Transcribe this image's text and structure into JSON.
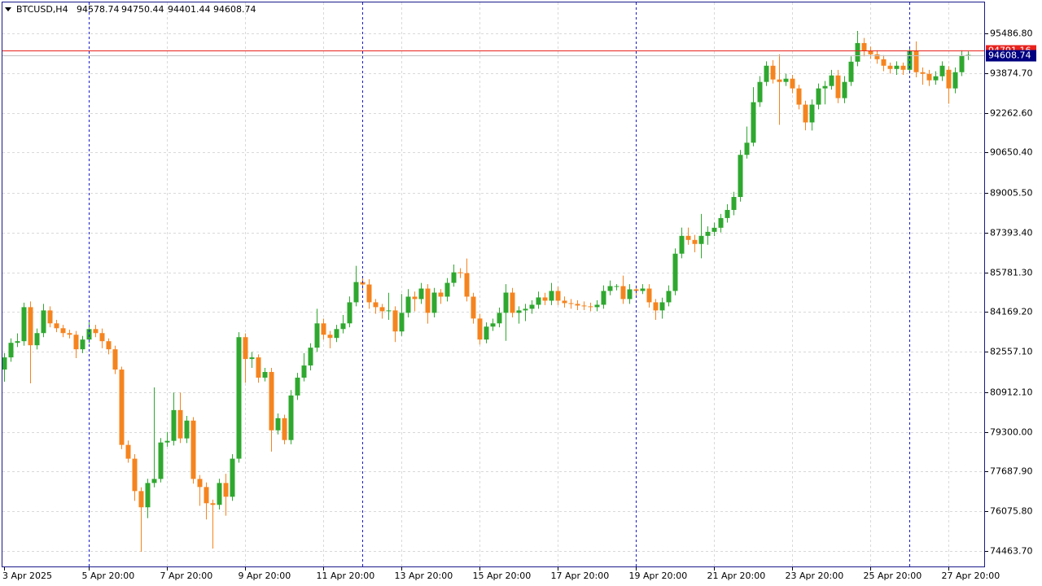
{
  "chart_data": {
    "type": "candlestick",
    "symbol": "BTCUSD,H4",
    "categories": [
      "3 Apr 2025",
      null,
      null,
      null,
      null,
      null,
      null,
      null,
      null,
      null,
      null,
      null,
      null,
      "5 Apr 20:00",
      null,
      null,
      null,
      null,
      null,
      null,
      null,
      null,
      null,
      null,
      null,
      "7 Apr 20:00",
      null,
      null,
      null,
      null,
      null,
      null,
      null,
      null,
      null,
      null,
      null,
      "9 Apr 20:00",
      null,
      null,
      null,
      null,
      null,
      null,
      null,
      null,
      null,
      null,
      null,
      "11 Apr 20:00",
      null,
      null,
      null,
      null,
      null,
      null,
      null,
      null,
      null,
      null,
      null,
      "13 Apr 20:00",
      null,
      null,
      null,
      null,
      null,
      null,
      null,
      null,
      null,
      null,
      null,
      "15 Apr 20:00",
      null,
      null,
      null,
      null,
      null,
      null,
      null,
      null,
      null,
      null,
      null,
      "17 Apr 20:00",
      null,
      null,
      null,
      null,
      null,
      null,
      null,
      null,
      null,
      null,
      null,
      "19 Apr 20:00",
      null,
      null,
      null,
      null,
      null,
      null,
      null,
      null,
      null,
      null,
      null,
      "21 Apr 20:00",
      null,
      null,
      null,
      null,
      null,
      null,
      null,
      null,
      null,
      null,
      null,
      "23 Apr 20:00",
      null,
      null,
      null,
      null,
      null,
      null,
      null,
      null,
      null,
      null,
      null,
      "25 Apr 20:00",
      null,
      null,
      null,
      null,
      null,
      null,
      null,
      null,
      null,
      null,
      null,
      "27 Apr 20:00",
      null,
      null,
      null
    ],
    "open": [
      81833,
      82327,
      82919,
      82985,
      84367,
      82820,
      83314,
      84235,
      83709,
      83511,
      83314,
      83248,
      82656,
      83051,
      83478,
      83314,
      82985,
      82656,
      81833,
      78774,
      78214,
      76898,
      76240,
      77227,
      77392,
      78872,
      78938,
      80188,
      79037,
      79761,
      77392,
      77063,
      76405,
      76339,
      77227,
      76668,
      78214,
      83149,
      82261,
      82327,
      81504,
      81735,
      79366,
      79859,
      78971,
      80781,
      81504,
      81998,
      82722,
      83709,
      83248,
      83117,
      83478,
      83709,
      84564,
      85387,
      85288,
      84564,
      84367,
      84202,
      84235,
      83380,
      84136,
      84794,
      84696,
      85123,
      84136,
      84959,
      84794,
      85354,
      85781,
      85749,
      84794,
      83906,
      83051,
      83577,
      83709,
      84136,
      84959,
      84136,
      84235,
      84301,
      84465,
      84762,
      84630,
      85025,
      84630,
      84531,
      84498,
      84433,
      84400,
      84367,
      84465,
      85025,
      85222,
      85222,
      84696,
      85091,
      85025,
      85123,
      84564,
      84235,
      84564,
      85025,
      86538,
      87262,
      87097,
      86933,
      87262,
      87426,
      87591,
      87986,
      88315,
      88841,
      90552,
      91045,
      92690,
      93513,
      94171,
      93612,
      93513,
      93645,
      93250,
      92592,
      91868,
      92592,
      93250,
      93348,
      93776,
      92855,
      93513,
      94335,
      95092,
      94763,
      94632,
      94434,
      94171,
      94039,
      94171,
      94006,
      94763,
      93908,
      93842,
      93579,
      93743,
      94006,
      93250,
      93908,
      94578.74
    ],
    "high": [
      82500,
      83100,
      83300,
      84550,
      84600,
      83500,
      84500,
      84400,
      83850,
      83650,
      83450,
      83400,
      83200,
      83750,
      83650,
      83500,
      83100,
      82800,
      81950,
      78950,
      78400,
      77050,
      77400,
      81110,
      79050,
      79300,
      80900,
      80900,
      79950,
      79900,
      77550,
      77250,
      76550,
      77400,
      77600,
      78400,
      83350,
      83300,
      82550,
      82450,
      81900,
      81900,
      80050,
      80000,
      81000,
      81700,
      82500,
      82900,
      84300,
      83900,
      83400,
      83650,
      84050,
      84800,
      86045,
      85550,
      85500,
      84700,
      84500,
      84950,
      84400,
      84900,
      85100,
      85000,
      85350,
      85300,
      85150,
      85100,
      85550,
      86100,
      85950,
      86341,
      84950,
      84100,
      83750,
      83900,
      84350,
      85300,
      85150,
      84400,
      84500,
      84650,
      85000,
      84950,
      85350,
      85200,
      84800,
      84700,
      84650,
      84600,
      84550,
      84650,
      85250,
      85450,
      85300,
      85650,
      85300,
      85250,
      85300,
      85300,
      84700,
      84750,
      85250,
      86750,
      87600,
      87600,
      87300,
      88150,
      87650,
      87800,
      88150,
      88550,
      89050,
      90750,
      91700,
      93300,
      93750,
      94350,
      94400,
      94632,
      93850,
      93800,
      93400,
      92750,
      92800,
      93450,
      93550,
      94000,
      94000,
      93750,
      94550,
      95586,
      95300,
      94950,
      94800,
      94600,
      94300,
      94350,
      94300,
      94950,
      95158,
      94100,
      94000,
      93950,
      94350,
      94150,
      94100,
      94800,
      94750.44
    ],
    "low": [
      81340,
      82150,
      82750,
      82800,
      81274,
      82650,
      83150,
      83550,
      83350,
      83150,
      83100,
      82300,
      82500,
      82900,
      83150,
      82700,
      82450,
      81650,
      78600,
      78050,
      76500,
      74431,
      75800,
      77050,
      77250,
      78700,
      78750,
      78850,
      78850,
      77200,
      76300,
      75747,
      74563,
      76150,
      75900,
      76500,
      78050,
      81300,
      81900,
      81300,
      81350,
      78500,
      79200,
      78800,
      78800,
      80600,
      81350,
      81800,
      82550,
      83050,
      82700,
      82950,
      83300,
      83550,
      84400,
      84950,
      84300,
      84100,
      83900,
      83850,
      82950,
      83200,
      83950,
      84200,
      84500,
      83700,
      83950,
      84500,
      84600,
      85200,
      85550,
      84600,
      83700,
      82850,
      82900,
      83400,
      83550,
      83000,
      83950,
      83700,
      83800,
      84100,
      84300,
      84450,
      84450,
      84450,
      84350,
      84300,
      84250,
      84250,
      84200,
      84200,
      84300,
      84850,
      85050,
      84500,
      84500,
      84850,
      84900,
      84350,
      83850,
      83900,
      84400,
      84850,
      86350,
      86900,
      86600,
      86350,
      86900,
      87250,
      87400,
      87800,
      88100,
      88650,
      90400,
      90900,
      92500,
      93350,
      93450,
      91769,
      93350,
      93050,
      92400,
      91550,
      91539,
      92400,
      92600,
      93200,
      92650,
      92650,
      93350,
      94150,
      94550,
      94450,
      94250,
      93950,
      93850,
      93800,
      93800,
      93850,
      93700,
      93400,
      93350,
      93400,
      93550,
      92625,
      93050,
      93750,
      94401.44
    ],
    "close": [
      82327,
      82919,
      82985,
      84367,
      82820,
      83314,
      84235,
      83709,
      83511,
      83314,
      83248,
      82656,
      83051,
      83478,
      83314,
      82985,
      82656,
      81833,
      78774,
      78214,
      76898,
      76240,
      77227,
      77392,
      78872,
      78938,
      80188,
      79037,
      79761,
      77392,
      77063,
      76405,
      76339,
      77227,
      76668,
      78214,
      83149,
      82261,
      82327,
      81504,
      81735,
      79366,
      79859,
      78971,
      80781,
      81504,
      81998,
      82722,
      83709,
      83248,
      83117,
      83478,
      83709,
      84564,
      85387,
      85288,
      84564,
      84367,
      84202,
      84235,
      83380,
      84136,
      84794,
      84696,
      85123,
      84136,
      84959,
      84794,
      85354,
      85781,
      85749,
      84794,
      83906,
      83051,
      83577,
      83709,
      84136,
      84959,
      84136,
      84235,
      84301,
      84465,
      84762,
      84630,
      85025,
      84630,
      84531,
      84498,
      84433,
      84400,
      84367,
      84465,
      85025,
      85222,
      85222,
      84696,
      85091,
      85025,
      85123,
      84564,
      84235,
      84564,
      85025,
      86538,
      87262,
      87097,
      86933,
      87262,
      87426,
      87591,
      87986,
      88315,
      88841,
      90552,
      91045,
      92690,
      93513,
      94171,
      93612,
      93513,
      93645,
      93250,
      92592,
      91868,
      92592,
      93250,
      93348,
      93776,
      92855,
      93513,
      94335,
      95092,
      94763,
      94632,
      94434,
      94171,
      94039,
      94171,
      94006,
      94763,
      93908,
      93842,
      93579,
      93743,
      94171,
      93250,
      93908,
      94566,
      94608.74
    ],
    "up_color": "#2fa82f",
    "down_color": "#f5841f",
    "ask": 94791.16,
    "ask_color": "#e8221c",
    "ylim": [
      73804,
      96741
    ],
    "yticks": [
      {
        "value": 95486.8,
        "label": "95486.80"
      },
      {
        "value": 93874.7,
        "label": "93874.70"
      },
      {
        "value": 92262.6,
        "label": "92262.60"
      },
      {
        "value": 90650.4,
        "label": "90650.40"
      },
      {
        "value": 89005.5,
        "label": "89005.50"
      },
      {
        "value": 87393.4,
        "label": "87393.40"
      },
      {
        "value": 85781.3,
        "label": "85781.30"
      },
      {
        "value": 84169.2,
        "label": "84169.20"
      },
      {
        "value": 82557.1,
        "label": "82557.10"
      },
      {
        "value": 80912.1,
        "label": "80912.10"
      },
      {
        "value": 79300,
        "label": "79300.00"
      },
      {
        "value": 77687.9,
        "label": "77687.90"
      },
      {
        "value": 76075.8,
        "label": "76075.80"
      },
      {
        "value": 74463.7,
        "label": "74463.70"
      }
    ],
    "grid": true
  }
}
